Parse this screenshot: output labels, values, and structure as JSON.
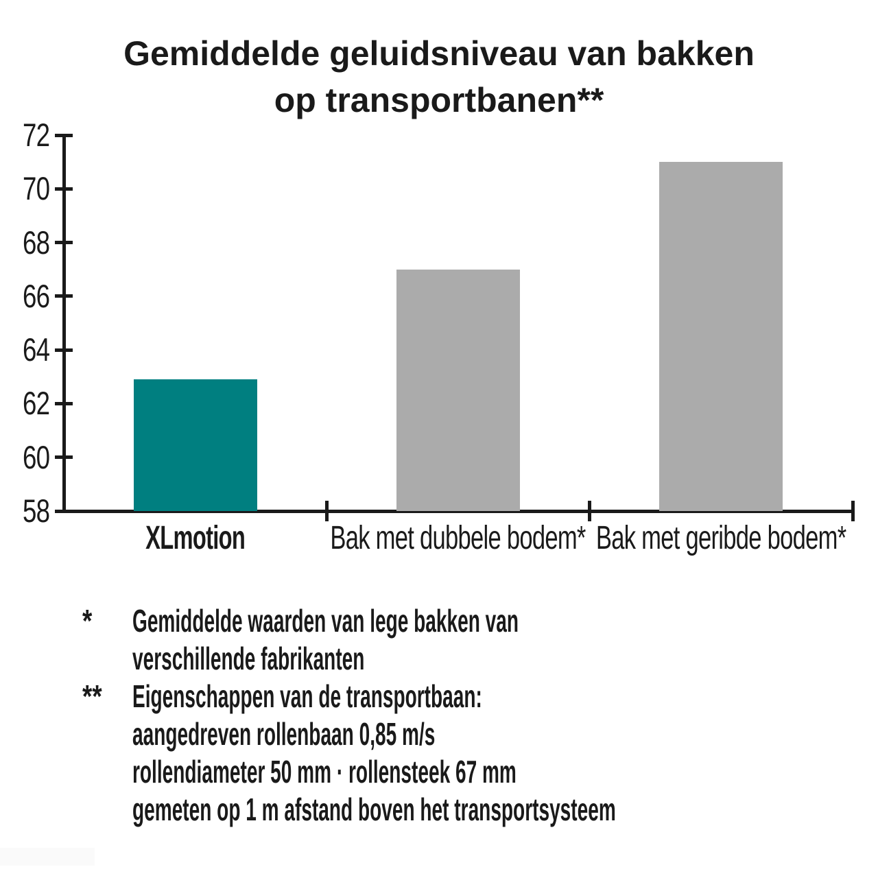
{
  "title": {
    "line1": "Gemiddelde geluidsniveau van bakken",
    "line2": "op transportbanen**"
  },
  "colors": {
    "accent_teal": "#007F80",
    "bar_gray": "#ABABAB",
    "axis_black": "#1A1A1A",
    "background": "#FFFFFF"
  },
  "chart_data": {
    "type": "bar",
    "title": "Gemiddelde geluidsniveau van bakken op transportbanen**",
    "categories": [
      "XLmotion",
      "Bak met dubbele bodem*",
      "Bak met geribde bodem*"
    ],
    "values": [
      62.9,
      67,
      71
    ],
    "bar_colors": [
      "#007F80",
      "#ABABAB",
      "#ABABAB"
    ],
    "ylim": [
      58,
      72
    ],
    "yticks": [
      58,
      60,
      62,
      64,
      66,
      68,
      70,
      72
    ],
    "xlabel": "",
    "ylabel": "",
    "grid": false,
    "legend": "none"
  },
  "footnotes": [
    {
      "marker": "*",
      "lines": [
        "Gemiddelde waarden van lege bakken van",
        "verschillende fabrikanten"
      ]
    },
    {
      "marker": "**",
      "lines": [
        "Eigenschappen van de transportbaan:",
        "aangedreven rollenbaan 0,85 m/s",
        "rollendiameter 50 mm · rollensteek 67 mm",
        "gemeten op 1 m afstand boven het transportsysteem"
      ]
    }
  ]
}
